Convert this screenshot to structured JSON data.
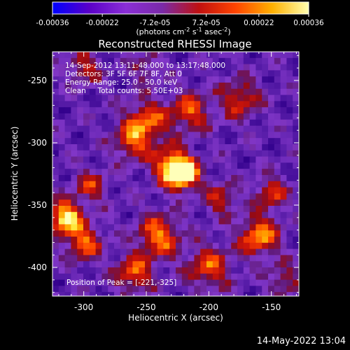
{
  "colorbar": {
    "tick_labels": [
      "-0.00036",
      "-0.00022",
      "-7.2e-05",
      "7.2e-05",
      "0.00022",
      "0.00036"
    ],
    "range": [
      -0.00036,
      0.00036
    ],
    "colors": [
      "#0000ff",
      "#5a00c8",
      "#8a2ed6",
      "#7a2aa8",
      "#c01010",
      "#ff4400",
      "#ffb000",
      "#ffffb0"
    ]
  },
  "chart_data": {
    "type": "heatmap",
    "title": "Reconstructed RHESSI Image",
    "xlabel": "Heliocentric X (arcsec)",
    "ylabel": "Heliocentric Y (arcsec)",
    "xlim": [
      -325,
      -128
    ],
    "ylim": [
      -423,
      -227
    ],
    "x_ticks": [
      -300,
      -250,
      -200,
      -150
    ],
    "y_ticks": [
      -250,
      -300,
      -350,
      -400
    ],
    "peak": {
      "x": -221,
      "y": -325
    },
    "sources": [
      {
        "x": -221,
        "y": -325,
        "amp": 1.0,
        "sigma": 9
      },
      {
        "x": -232,
        "y": -317,
        "amp": 0.55,
        "sigma": 10
      },
      {
        "x": -250,
        "y": -283,
        "amp": 0.55,
        "sigma": 12
      },
      {
        "x": -262,
        "y": -300,
        "amp": 0.45,
        "sigma": 10
      },
      {
        "x": -315,
        "y": -360,
        "amp": 0.85,
        "sigma": 9
      },
      {
        "x": -300,
        "y": -380,
        "amp": 0.55,
        "sigma": 10
      },
      {
        "x": -295,
        "y": -335,
        "amp": 0.4,
        "sigma": 9
      },
      {
        "x": -215,
        "y": -275,
        "amp": 0.5,
        "sigma": 11
      },
      {
        "x": -175,
        "y": -265,
        "amp": 0.45,
        "sigma": 11
      },
      {
        "x": -240,
        "y": -375,
        "amp": 0.6,
        "sigma": 12
      },
      {
        "x": -260,
        "y": -405,
        "amp": 0.55,
        "sigma": 10
      },
      {
        "x": -200,
        "y": -400,
        "amp": 0.5,
        "sigma": 12
      },
      {
        "x": -160,
        "y": -375,
        "amp": 0.65,
        "sigma": 11
      },
      {
        "x": -150,
        "y": -340,
        "amp": 0.45,
        "sigma": 9
      },
      {
        "x": -300,
        "y": -240,
        "amp": 0.4,
        "sigma": 9
      },
      {
        "x": -250,
        "y": -240,
        "amp": 0.3,
        "sigma": 8
      },
      {
        "x": -190,
        "y": -345,
        "amp": 0.4,
        "sigma": 9
      },
      {
        "x": -140,
        "y": -410,
        "amp": 0.35,
        "sigma": 9
      }
    ]
  },
  "info": {
    "time": "14-Sep-2012 13:11:48.000 to 13:17:48.000",
    "detectors": "Detectors: 3F 5F 6F 7F 8F, Att 0",
    "energy": "Energy Range: 25.0 - 50.0 keV",
    "algorithm": "Clean     Total counts: 5.50E+03",
    "peak": "Position of Peak = [-221,-325]"
  },
  "timestamp": "14-May-2022 13:04"
}
